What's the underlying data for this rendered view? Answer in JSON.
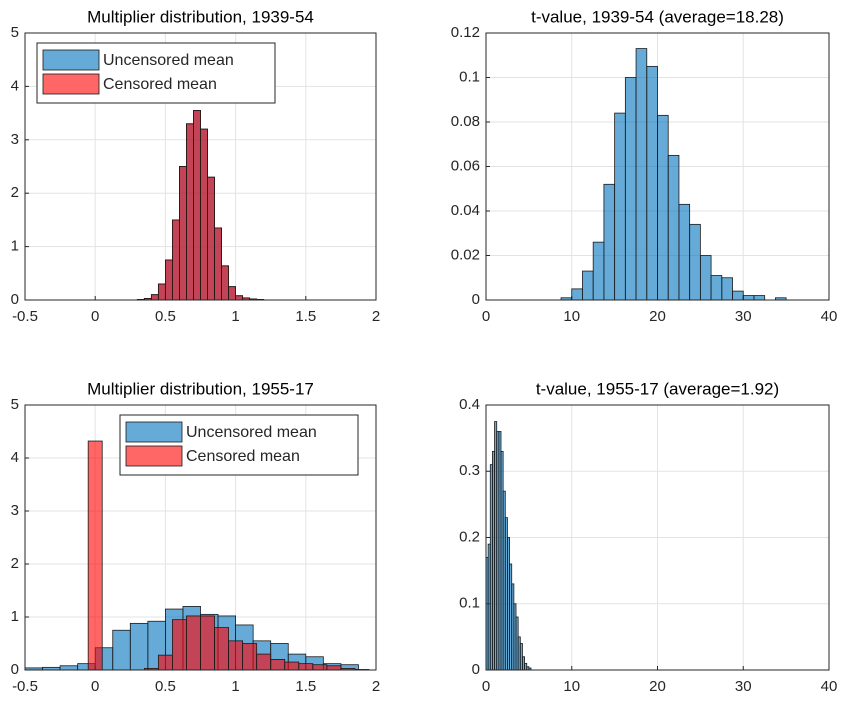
{
  "chart_data": [
    {
      "type": "histogram",
      "title": "Multiplier distribution, 1939-54",
      "xlim": [
        -0.5,
        2
      ],
      "xticks": [
        -0.5,
        0,
        0.5,
        1,
        1.5,
        2
      ],
      "ylim": [
        0,
        5
      ],
      "yticks": [
        0,
        1,
        2,
        3,
        4,
        5
      ],
      "grid": true,
      "legend": "northwest",
      "series": [
        {
          "name": "Uncensored mean",
          "color": "#0072bd",
          "bins": [
            0.3,
            0.35,
            0.4,
            0.45,
            0.5,
            0.55,
            0.6,
            0.65,
            0.7,
            0.75,
            0.8,
            0.85,
            0.9,
            0.95,
            1.0,
            1.05,
            1.1,
            1.15,
            1.2
          ],
          "values": [
            0.01,
            0.03,
            0.1,
            0.3,
            0.75,
            1.5,
            2.5,
            3.3,
            3.55,
            3.2,
            2.3,
            1.35,
            0.64,
            0.25,
            0.08,
            0.04,
            0.02,
            0.01
          ]
        },
        {
          "name": "Censored mean",
          "color": "#ff0000",
          "bins": [
            0.3,
            0.35,
            0.4,
            0.45,
            0.5,
            0.55,
            0.6,
            0.65,
            0.7,
            0.75,
            0.8,
            0.85,
            0.9,
            0.95,
            1.0,
            1.05,
            1.1,
            1.15,
            1.2
          ],
          "values": [
            0.01,
            0.03,
            0.1,
            0.3,
            0.75,
            1.5,
            2.5,
            3.3,
            3.55,
            3.2,
            2.3,
            1.35,
            0.64,
            0.25,
            0.08,
            0.04,
            0.02,
            0.01
          ]
        }
      ]
    },
    {
      "type": "histogram",
      "title": "t-value, 1939-54 (average=18.28)",
      "xlim": [
        0,
        40
      ],
      "xticks": [
        0,
        10,
        20,
        30,
        40
      ],
      "ylim": [
        0,
        0.12
      ],
      "yticks": [
        0,
        0.02,
        0.04,
        0.06,
        0.08,
        0.1,
        0.12
      ],
      "grid": true,
      "series": [
        {
          "color": "#0072bd",
          "bins": [
            8.75,
            10,
            11.25,
            12.5,
            13.75,
            15,
            16.25,
            17.5,
            18.75,
            20,
            21.25,
            22.5,
            23.75,
            25,
            26.25,
            27.5,
            28.75,
            30,
            31.25,
            32.5,
            33.75,
            35
          ],
          "values": [
            0.001,
            0.005,
            0.013,
            0.026,
            0.052,
            0.084,
            0.1,
            0.113,
            0.105,
            0.083,
            0.065,
            0.043,
            0.034,
            0.02,
            0.011,
            0.01,
            0.004,
            0.002,
            0.002,
            0,
            0.001
          ]
        }
      ]
    },
    {
      "type": "histogram",
      "title": "Multiplier distribution, 1955-17",
      "xlim": [
        -0.5,
        2
      ],
      "xticks": [
        -0.5,
        0,
        0.5,
        1,
        1.5,
        2
      ],
      "ylim": [
        0,
        5
      ],
      "yticks": [
        0,
        1,
        2,
        3,
        4,
        5
      ],
      "grid": true,
      "legend": "northeast",
      "series": [
        {
          "name": "Uncensored mean",
          "color": "#0072bd",
          "bins": [
            -0.5,
            -0.375,
            -0.25,
            -0.125,
            0,
            0.125,
            0.25,
            0.375,
            0.5,
            0.625,
            0.75,
            0.875,
            1.0,
            1.125,
            1.25,
            1.375,
            1.5,
            1.625,
            1.75,
            1.875
          ],
          "values": [
            0.04,
            0.05,
            0.08,
            0.12,
            0.42,
            0.75,
            0.88,
            0.92,
            1.15,
            1.2,
            1.05,
            1.02,
            0.85,
            0.55,
            0.5,
            0.3,
            0.25,
            0.12,
            0.1
          ]
        },
        {
          "name": "Censored mean",
          "color": "#ff0000",
          "bins": [
            -0.05,
            0.05,
            0.15,
            0.25,
            0.35,
            0.45,
            0.55,
            0.65,
            0.75,
            0.85,
            0.95,
            1.05,
            1.15,
            1.25,
            1.35,
            1.45,
            1.55,
            1.65,
            1.75,
            1.85,
            1.95
          ],
          "values": [
            4.32,
            0,
            0,
            0,
            0.03,
            0.28,
            0.95,
            1.02,
            1.02,
            0.8,
            0.55,
            0.5,
            0.3,
            0.2,
            0.15,
            0.12,
            0.1,
            0.08,
            0.03,
            0.01
          ]
        }
      ]
    },
    {
      "type": "histogram",
      "title": "t-value, 1955-17 (average=1.92)",
      "xlim": [
        0,
        40
      ],
      "xticks": [
        0,
        10,
        20,
        30,
        40
      ],
      "ylim": [
        0,
        0.4
      ],
      "yticks": [
        0,
        0.1,
        0.2,
        0.3,
        0.4
      ],
      "grid": true,
      "series": [
        {
          "color": "#0072bd",
          "bins": [
            0,
            0.25,
            0.5,
            0.75,
            1.0,
            1.25,
            1.5,
            1.75,
            2.0,
            2.25,
            2.5,
            2.75,
            3.0,
            3.25,
            3.5,
            3.75,
            4.0,
            4.25,
            4.5,
            4.75,
            5.0,
            5.25
          ],
          "values": [
            0.17,
            0.19,
            0.31,
            0.33,
            0.375,
            0.36,
            0.36,
            0.33,
            0.27,
            0.23,
            0.2,
            0.16,
            0.13,
            0.1,
            0.08,
            0.05,
            0.04,
            0.02,
            0.01,
            0.005,
            0.003
          ]
        }
      ]
    }
  ]
}
